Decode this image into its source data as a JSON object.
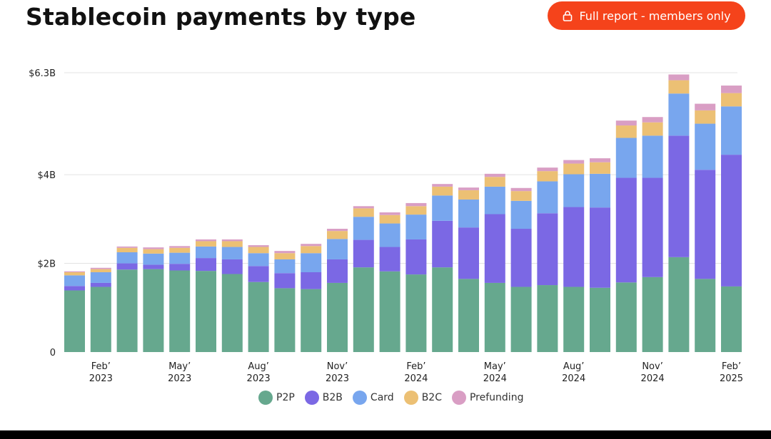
{
  "header": {
    "title": "Stablecoin payments by type",
    "cta_label": "Full report - members only",
    "cta_color": "#f5431b"
  },
  "icons": {
    "cta": "lock-icon"
  },
  "chart_data": {
    "type": "bar",
    "stacked": true,
    "title": "Stablecoin payments by type",
    "xlabel": "",
    "ylabel": "",
    "ylim": [
      0,
      6.3
    ],
    "y_ticks": [
      {
        "value": 0,
        "label": "0"
      },
      {
        "value": 2,
        "label": "$2B"
      },
      {
        "value": 4,
        "label": "$4B"
      },
      {
        "value": 6.3,
        "label": "$6.3B"
      }
    ],
    "grid": true,
    "legend_position": "bottom",
    "categories": [
      "Jan 2023",
      "Feb 2023",
      "Mar 2023",
      "Apr 2023",
      "May 2023",
      "Jun 2023",
      "Jul 2023",
      "Aug 2023",
      "Sep 2023",
      "Oct 2023",
      "Nov 2023",
      "Dec 2023",
      "Jan 2024",
      "Feb 2024",
      "Mar 2024",
      "Apr 2024",
      "May 2024",
      "Jun 2024",
      "Jul 2024",
      "Aug 2024",
      "Sep 2024",
      "Oct 2024",
      "Nov 2024",
      "Dec 2024",
      "Jan 2025",
      "Feb 2025"
    ],
    "x_tick_labels": [
      {
        "index": 1,
        "line1": "Feb’",
        "line2": "2023"
      },
      {
        "index": 4,
        "line1": "May’",
        "line2": "2023"
      },
      {
        "index": 7,
        "line1": "Aug’",
        "line2": "2023"
      },
      {
        "index": 10,
        "line1": "Nov’",
        "line2": "2023"
      },
      {
        "index": 13,
        "line1": "Feb’",
        "line2": "2024"
      },
      {
        "index": 16,
        "line1": "May’",
        "line2": "2024"
      },
      {
        "index": 19,
        "line1": "Aug’",
        "line2": "2024"
      },
      {
        "index": 22,
        "line1": "Nov’",
        "line2": "2024"
      },
      {
        "index": 25,
        "line1": "Feb’",
        "line2": "2025"
      }
    ],
    "series": [
      {
        "name": "P2P",
        "color": "#66a88e",
        "values": [
          1.39,
          1.47,
          1.86,
          1.87,
          1.84,
          1.83,
          1.76,
          1.58,
          1.44,
          1.42,
          1.56,
          1.91,
          1.82,
          1.75,
          1.91,
          1.65,
          1.56,
          1.47,
          1.51,
          1.47,
          1.45,
          1.57,
          1.69,
          2.14,
          1.65,
          1.48
        ]
      },
      {
        "name": "B2B",
        "color": "#7b68e4",
        "values": [
          0.1,
          0.09,
          0.14,
          0.1,
          0.15,
          0.29,
          0.33,
          0.36,
          0.34,
          0.38,
          0.53,
          0.62,
          0.55,
          0.79,
          1.05,
          1.16,
          1.55,
          1.31,
          1.62,
          1.8,
          1.81,
          2.36,
          2.24,
          2.74,
          2.46,
          2.97
        ]
      },
      {
        "name": "Card",
        "color": "#78a6ee",
        "values": [
          0.24,
          0.24,
          0.25,
          0.25,
          0.25,
          0.26,
          0.28,
          0.29,
          0.31,
          0.43,
          0.46,
          0.52,
          0.53,
          0.56,
          0.57,
          0.63,
          0.62,
          0.63,
          0.72,
          0.74,
          0.76,
          0.9,
          0.95,
          0.95,
          1.04,
          1.09
        ]
      },
      {
        "name": "B2C",
        "color": "#ecc074",
        "values": [
          0.07,
          0.07,
          0.1,
          0.1,
          0.11,
          0.12,
          0.13,
          0.14,
          0.14,
          0.16,
          0.18,
          0.19,
          0.19,
          0.19,
          0.2,
          0.21,
          0.22,
          0.22,
          0.23,
          0.24,
          0.26,
          0.28,
          0.3,
          0.3,
          0.3,
          0.3
        ]
      },
      {
        "name": "Prefunding",
        "color": "#d99ec4",
        "values": [
          0.02,
          0.03,
          0.03,
          0.04,
          0.04,
          0.04,
          0.04,
          0.04,
          0.05,
          0.05,
          0.05,
          0.05,
          0.06,
          0.07,
          0.06,
          0.06,
          0.07,
          0.07,
          0.08,
          0.08,
          0.09,
          0.11,
          0.12,
          0.13,
          0.15,
          0.17
        ]
      }
    ]
  }
}
